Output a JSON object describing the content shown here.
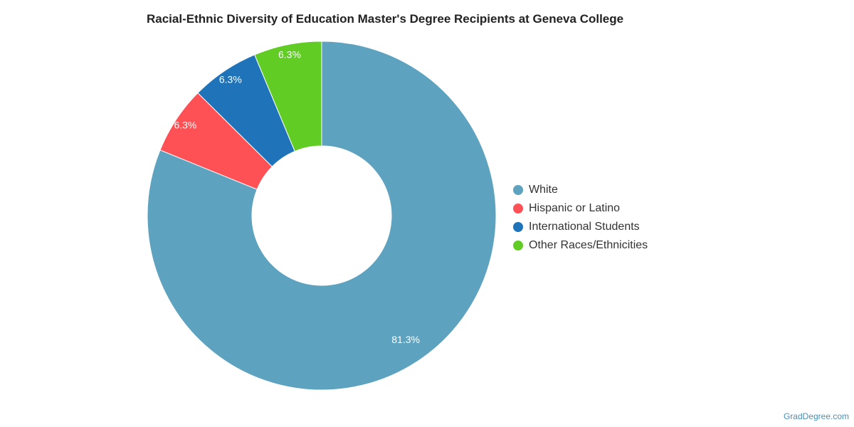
{
  "chart_data": {
    "type": "pie",
    "title": "Racial-Ethnic Diversity of Education Master's Degree Recipients at Geneva College",
    "categories": [
      "White",
      "Hispanic or Latino",
      "International Students",
      "Other Races/Ethnicities"
    ],
    "values": [
      81.3,
      6.3,
      6.3,
      6.3
    ],
    "value_labels": [
      "81.3%",
      "6.3%",
      "6.3%",
      "6.3%"
    ],
    "colors": [
      "#5da2bf",
      "#fe5155",
      "#1f73b9",
      "#60cc24"
    ],
    "legend_position": "right",
    "donut": true
  },
  "watermark": "GradDegree.com"
}
